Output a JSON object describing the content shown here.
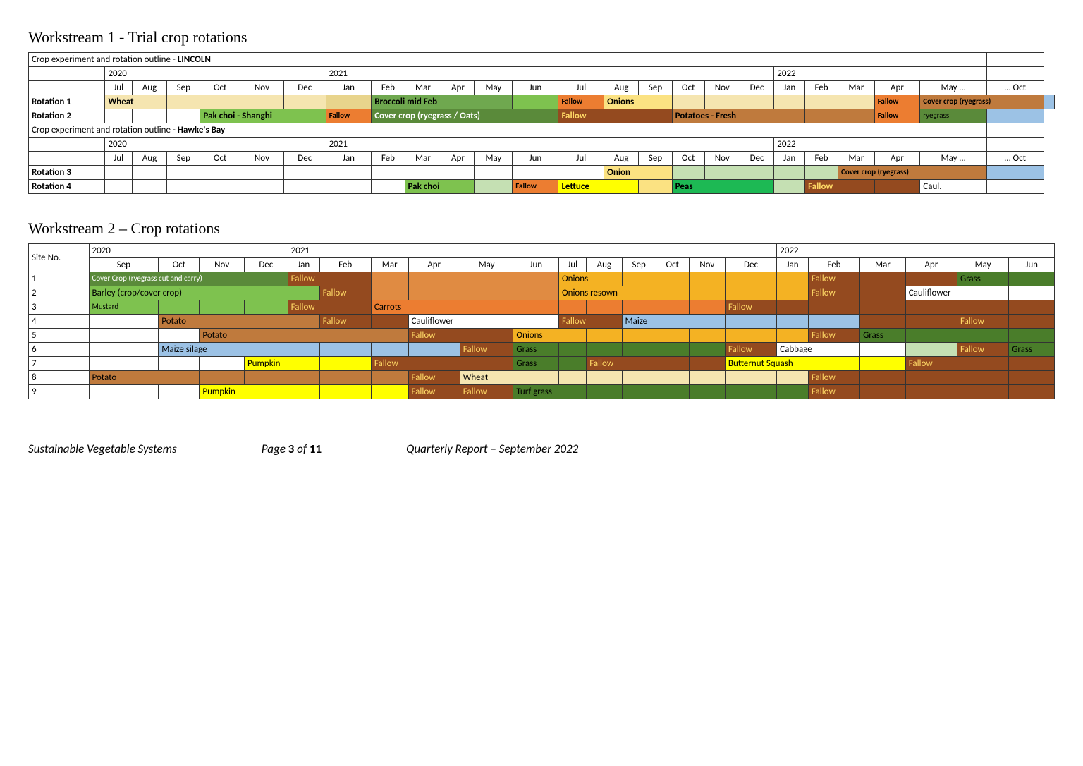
{
  "ws1": {
    "title": "Workstream 1 - Trial crop rotations",
    "header1": "Crop experiment and rotation outline - ",
    "header1b": "LINCOLN",
    "header2a": "Crop experiment and rotation outline - ",
    "header2b": "Hawke's Bay",
    "years": [
      "2020",
      "2021",
      "2022"
    ],
    "months": [
      "Jul",
      "Aug",
      "Sep",
      "Oct",
      "Nov",
      "Dec",
      "Jan",
      "Feb",
      "Mar",
      "Apr",
      "May",
      "Jun",
      "Jul",
      "Aug",
      "Sep",
      "Oct",
      "Nov",
      "Dec",
      "Jan",
      "Feb",
      "Mar",
      "Apr",
      "May …",
      "… Oct"
    ],
    "r1": {
      "label": "Rotation 1",
      "wheat_label": "Wheat",
      "broccoli_label": "Broccoli mid Feb",
      "fallow_label": "Fallow",
      "onions_label": "Onions",
      "fallow2_label": "Fallow",
      "cover_label": "Cover crop (ryegrass)"
    },
    "r2": {
      "label": "Rotation 2",
      "pak_label": "Pak choi - Shanghi",
      "fallow_s": "Fallow",
      "cover_label": "Cover crop (ryegrass / Oats)",
      "fallow_mid": "Fallow",
      "potatoes": "Potatoes - Fresh",
      "fallow_late": "Fallow",
      "rye": "ryegrass"
    },
    "r3": {
      "label": "Rotation 3",
      "onion": "Onion",
      "cover": "Cover crop (ryegrass)"
    },
    "r4": {
      "label": "Rotation 4",
      "pak": "Pak choi",
      "fallow": "Fallow",
      "lettuce": "Lettuce",
      "peas": "Peas",
      "fallow2": "Fallow",
      "caul": "Caul."
    }
  },
  "ws2": {
    "title": "Workstream 2 – Crop rotations",
    "site_label": "Site No.",
    "years": [
      "2020",
      "2021",
      "2022"
    ],
    "months": [
      "Sep",
      "Oct",
      "Nov",
      "Dec",
      "Jan",
      "Feb",
      "Mar",
      "Apr",
      "May",
      "Jun",
      "Jul",
      "Aug",
      "Sep",
      "Oct",
      "Nov",
      "Dec",
      "Jan",
      "Feb",
      "Mar",
      "Apr",
      "May",
      "Jun"
    ],
    "rows": {
      "1": {
        "cover": "Cover Crop (ryegrass cut and carry)",
        "fallow1": "Fallow",
        "onions": "Onions",
        "fallow2": "Fallow",
        "grass": "Grass"
      },
      "2": {
        "barley": "Barley (crop/cover crop)",
        "fallow1": "Fallow",
        "onions": "Onions resown",
        "fallow2": "Fallow",
        "caul": "Cauliflower"
      },
      "3": {
        "mustard": "Mustard",
        "fallow1": "Fallow",
        "carrots": "Carrots",
        "fallow2": "Fallow"
      },
      "4": {
        "potato": "Potato",
        "fallow1": "Fallow",
        "caul": "Cauliflower",
        "fallow2": "Fallow",
        "maize": "Maize",
        "fallow3": "Fallow"
      },
      "5": {
        "potato": "Potato",
        "fallow1": "Fallow",
        "onions": "Onions",
        "fallow2": "Fallow",
        "grass": "Grass"
      },
      "6": {
        "maize": "Maize silage",
        "fallow1": "Fallow",
        "grass1": "Grass",
        "fallow2": "Fallow",
        "cabbage": "Cabbage",
        "fallow3": "Fallow",
        "grass2": "Grass"
      },
      "7": {
        "pumpkin": "Pumpkin",
        "fallow1": "Fallow",
        "grass": "Grass",
        "fallow2": "Fallow",
        "squash": "Butternut Squash",
        "fallow3": "Fallow"
      },
      "8": {
        "potato": "Potato",
        "fallow1": "Fallow",
        "wheat": "Wheat",
        "fallow2": "Fallow"
      },
      "9": {
        "pumpkin": "Pumpkin",
        "fallow1": "Fallow",
        "fallow1b": "Fallow",
        "turf": "Turf grass",
        "fallow2": "Fallow"
      }
    }
  },
  "footer": {
    "left": "Sustainable Vegetable Systems",
    "mid_a": "Page ",
    "mid_b": "3",
    "mid_c": " of ",
    "mid_d": "11",
    "right": "Quarterly Report – September 2022"
  },
  "colors": {
    "wheat": "#f5e5b0",
    "wheat_d": "#e8d48c",
    "green_mid": "#6fa84f",
    "green_light": "#c5e0b3",
    "green_bright": "#7ec24f",
    "green_dark": "#4f7c31",
    "emerald": "#1db954",
    "orange": "#ec7d31",
    "orange_mid": "#e08b42",
    "fallow": "#944a1f",
    "brown": "#833c0b",
    "brown_light": "#bf7a3d",
    "yellow": "#ffff00",
    "yellow_soft": "#fbe282",
    "blue": "#9cc2e5",
    "olive": "#5a8a3a",
    "olive_dark": "#4a7d2a",
    "gray_head": "#ffffff",
    "fallow_txt": "#ffd966"
  }
}
